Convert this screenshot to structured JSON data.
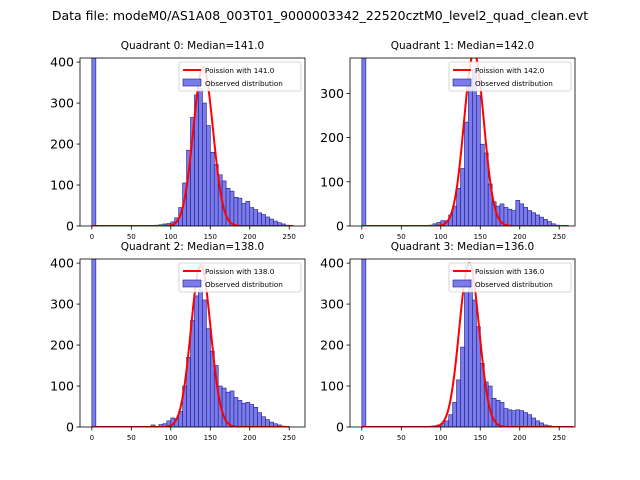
{
  "suptitle": "Data file: modeM0/AS1A08_003T01_9000003342_22520cztM0_level2_quad_clean.evt",
  "legend_observed": "Observed distribution",
  "colors": {
    "bar_fill": "#7b7bea",
    "bar_edge": "#1a1a8c",
    "line": "#ff0000"
  },
  "chart_data": [
    {
      "type": "bar",
      "title": "Quadrant 0: Median=141.0",
      "line_label": "Poission with 141.0",
      "mean": 141.0,
      "peak": 388,
      "sigma": 12.5,
      "ylim": [
        0,
        410
      ],
      "xlim": [
        -15,
        270
      ],
      "yticks": [
        0,
        100,
        200,
        300,
        400
      ],
      "xticks": [
        0,
        50,
        100,
        150,
        200,
        250
      ],
      "bin_width": 5.1,
      "bins": [
        [
          0,
          410
        ],
        [
          75,
          1
        ],
        [
          80,
          2
        ],
        [
          85,
          3
        ],
        [
          90,
          5
        ],
        [
          95,
          6
        ],
        [
          100,
          10
        ],
        [
          105,
          20
        ],
        [
          110,
          45
        ],
        [
          115,
          105
        ],
        [
          120,
          185
        ],
        [
          125,
          265
        ],
        [
          130,
          320
        ],
        [
          135,
          335
        ],
        [
          140,
          300
        ],
        [
          145,
          245
        ],
        [
          150,
          180
        ],
        [
          155,
          150
        ],
        [
          160,
          125
        ],
        [
          165,
          110
        ],
        [
          170,
          92
        ],
        [
          175,
          85
        ],
        [
          180,
          70
        ],
        [
          185,
          68
        ],
        [
          190,
          55
        ],
        [
          195,
          60
        ],
        [
          200,
          45
        ],
        [
          205,
          40
        ],
        [
          210,
          32
        ],
        [
          215,
          28
        ],
        [
          220,
          22
        ],
        [
          225,
          17
        ],
        [
          230,
          12
        ],
        [
          235,
          8
        ],
        [
          240,
          5
        ],
        [
          245,
          2
        ],
        [
          250,
          1
        ]
      ],
      "line_x_range": [
        0,
        255
      ]
    },
    {
      "type": "bar",
      "title": "Quadrant 1: Median=142.0",
      "line_label": "Poission with 142.0",
      "mean": 142.0,
      "peak": 392,
      "sigma": 12.5,
      "ylim": [
        0,
        380
      ],
      "xlim": [
        -15,
        270
      ],
      "yticks": [
        0,
        100,
        200,
        300
      ],
      "xticks": [
        0,
        50,
        100,
        150,
        200,
        250
      ],
      "bin_width": 5.1,
      "bins": [
        [
          0,
          380
        ],
        [
          85,
          2
        ],
        [
          90,
          5
        ],
        [
          95,
          8
        ],
        [
          100,
          12
        ],
        [
          105,
          12
        ],
        [
          110,
          25
        ],
        [
          115,
          45
        ],
        [
          120,
          85
        ],
        [
          125,
          130
        ],
        [
          130,
          235
        ],
        [
          135,
          315
        ],
        [
          140,
          355
        ],
        [
          145,
          295
        ],
        [
          150,
          185
        ],
        [
          155,
          165
        ],
        [
          160,
          95
        ],
        [
          165,
          55
        ],
        [
          170,
          45
        ],
        [
          175,
          50
        ],
        [
          180,
          42
        ],
        [
          185,
          38
        ],
        [
          190,
          35
        ],
        [
          195,
          58
        ],
        [
          200,
          50
        ],
        [
          205,
          42
        ],
        [
          210,
          35
        ],
        [
          215,
          30
        ],
        [
          220,
          25
        ],
        [
          225,
          20
        ],
        [
          230,
          15
        ],
        [
          235,
          10
        ],
        [
          240,
          5
        ],
        [
          245,
          2
        ],
        [
          250,
          1
        ]
      ],
      "line_x_range": [
        0,
        262
      ]
    },
    {
      "type": "bar",
      "title": "Quadrant 2: Median=138.0",
      "line_label": "Poission with 138.0",
      "mean": 138.0,
      "peak": 395,
      "sigma": 12.5,
      "ylim": [
        0,
        410
      ],
      "xlim": [
        -15,
        270
      ],
      "yticks": [
        0,
        100,
        200,
        300,
        400
      ],
      "xticks": [
        0,
        50,
        100,
        150,
        200,
        250
      ],
      "bin_width": 5.1,
      "bins": [
        [
          0,
          410
        ],
        [
          75,
          5
        ],
        [
          85,
          6
        ],
        [
          90,
          8
        ],
        [
          95,
          15
        ],
        [
          100,
          22
        ],
        [
          105,
          20
        ],
        [
          110,
          38
        ],
        [
          115,
          100
        ],
        [
          120,
          170
        ],
        [
          125,
          260
        ],
        [
          130,
          320
        ],
        [
          135,
          335
        ],
        [
          140,
          310
        ],
        [
          145,
          240
        ],
        [
          150,
          185
        ],
        [
          155,
          150
        ],
        [
          160,
          100
        ],
        [
          165,
          95
        ],
        [
          170,
          85
        ],
        [
          175,
          88
        ],
        [
          180,
          72
        ],
        [
          185,
          65
        ],
        [
          190,
          58
        ],
        [
          195,
          60
        ],
        [
          200,
          55
        ],
        [
          205,
          48
        ],
        [
          210,
          35
        ],
        [
          215,
          25
        ],
        [
          220,
          18
        ],
        [
          225,
          12
        ],
        [
          230,
          8
        ],
        [
          235,
          5
        ],
        [
          240,
          2
        ],
        [
          245,
          1
        ]
      ],
      "line_x_range": [
        0,
        250
      ]
    },
    {
      "type": "bar",
      "title": "Quadrant 3: Median=136.0",
      "line_label": "Poission with 136.0",
      "mean": 136.0,
      "peak": 400,
      "sigma": 12.5,
      "ylim": [
        0,
        410
      ],
      "xlim": [
        -15,
        270
      ],
      "yticks": [
        0,
        100,
        200,
        300,
        400
      ],
      "xticks": [
        0,
        50,
        100,
        150,
        200,
        250
      ],
      "bin_width": 5.1,
      "bins": [
        [
          0,
          410
        ],
        [
          85,
          2
        ],
        [
          90,
          3
        ],
        [
          95,
          5
        ],
        [
          100,
          8
        ],
        [
          105,
          15
        ],
        [
          110,
          30
        ],
        [
          115,
          60
        ],
        [
          120,
          115
        ],
        [
          125,
          195
        ],
        [
          130,
          330
        ],
        [
          135,
          360
        ],
        [
          140,
          310
        ],
        [
          145,
          245
        ],
        [
          150,
          155
        ],
        [
          155,
          110
        ],
        [
          160,
          100
        ],
        [
          165,
          70
        ],
        [
          170,
          65
        ],
        [
          175,
          60
        ],
        [
          180,
          45
        ],
        [
          185,
          42
        ],
        [
          190,
          40
        ],
        [
          195,
          42
        ],
        [
          200,
          40
        ],
        [
          205,
          35
        ],
        [
          210,
          30
        ],
        [
          215,
          22
        ],
        [
          220,
          15
        ],
        [
          225,
          10
        ],
        [
          230,
          5
        ],
        [
          235,
          3
        ],
        [
          240,
          1
        ]
      ],
      "line_x_range": [
        0,
        268
      ]
    }
  ]
}
